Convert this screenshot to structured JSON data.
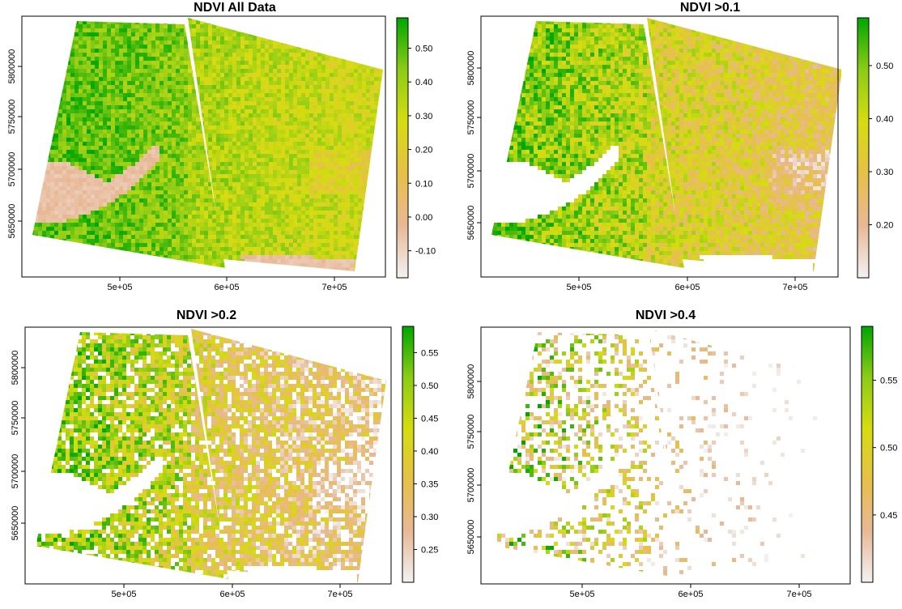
{
  "chart_data": [
    {
      "type": "heatmap",
      "title": "NDVI All Data",
      "xlabel": "",
      "ylabel": "",
      "x_ticks": [
        "5e+05",
        "6e+05",
        "7e+05"
      ],
      "y_ticks": [
        "5650000",
        "5700000",
        "5750000",
        "5800000"
      ],
      "legend": {
        "position": "right",
        "min": -0.18,
        "max": 0.59,
        "ticks": [
          -0.1,
          0.0,
          0.1,
          0.2,
          0.3,
          0.4,
          0.5
        ],
        "tick_labels": [
          "-0.10",
          "0.00",
          "0.10",
          "0.20",
          "0.30",
          "0.40",
          "0.50"
        ]
      },
      "threshold": null
    },
    {
      "type": "heatmap",
      "title": "NDVI >0.1",
      "xlabel": "",
      "ylabel": "",
      "x_ticks": [
        "5e+05",
        "6e+05",
        "7e+05"
      ],
      "y_ticks": [
        "5650000",
        "5700000",
        "5750000",
        "5800000"
      ],
      "legend": {
        "position": "right",
        "min": 0.1,
        "max": 0.59,
        "ticks": [
          0.2,
          0.3,
          0.4,
          0.5
        ],
        "tick_labels": [
          "0.20",
          "0.30",
          "0.40",
          "0.50"
        ]
      },
      "threshold": 0.1
    },
    {
      "type": "heatmap",
      "title": "NDVI >0.2",
      "xlabel": "",
      "ylabel": "",
      "x_ticks": [
        "5e+05",
        "6e+05",
        "7e+05"
      ],
      "y_ticks": [
        "5650000",
        "5700000",
        "5750000",
        "5800000"
      ],
      "legend": {
        "position": "right",
        "min": 0.2,
        "max": 0.59,
        "ticks": [
          0.25,
          0.3,
          0.35,
          0.4,
          0.45,
          0.5,
          0.55
        ],
        "tick_labels": [
          "0.25",
          "0.30",
          "0.35",
          "0.40",
          "0.45",
          "0.50",
          "0.55"
        ]
      },
      "threshold": 0.2
    },
    {
      "type": "heatmap",
      "title": "NDVI >0.4",
      "xlabel": "",
      "ylabel": "",
      "x_ticks": [
        "5e+05",
        "6e+05",
        "7e+05"
      ],
      "y_ticks": [
        "5650000",
        "5700000",
        "5750000",
        "5800000"
      ],
      "legend": {
        "position": "right",
        "min": 0.4,
        "max": 0.59,
        "ticks": [
          0.45,
          0.5,
          0.55
        ],
        "tick_labels": [
          "0.45",
          "0.50",
          "0.55"
        ]
      },
      "threshold": 0.4
    }
  ],
  "colors": {
    "ramp": [
      "#f2f2f2",
      "#e8b896",
      "#e6c048",
      "#d6dc10",
      "#8ccc16",
      "#00a600"
    ],
    "axis": "#000000",
    "background": "#ffffff"
  }
}
